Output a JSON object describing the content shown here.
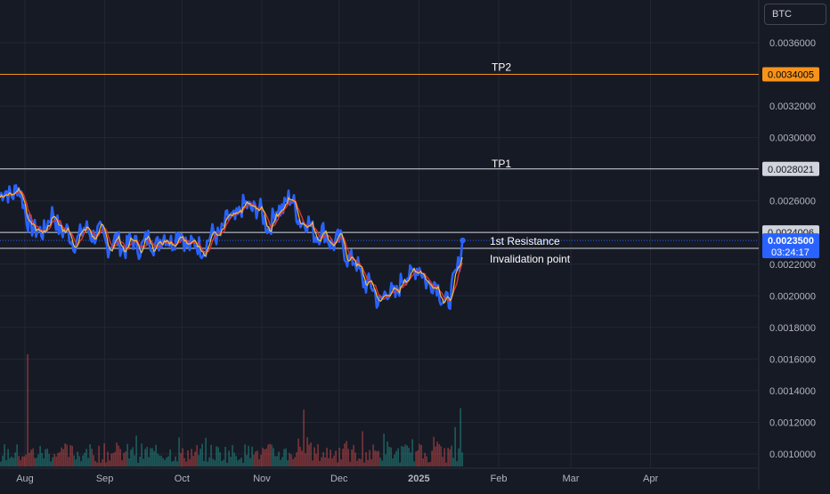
{
  "currency_button": "BTC",
  "chart_data": {
    "type": "line",
    "title": "",
    "xlabel": "",
    "ylabel": "",
    "ylim": [
      0.00094,
      0.00375
    ],
    "x_tick_labels": [
      "Aug",
      "Sep",
      "Oct",
      "Nov",
      "Dec",
      "2025",
      "Feb",
      "Mar",
      "Apr"
    ],
    "y_tick_labels": [
      "0.0036000",
      "0.0034000",
      "0.0032000",
      "0.0030000",
      "0.0028000",
      "0.0026000",
      "0.0024000",
      "0.0022000",
      "0.0020000",
      "0.0018000",
      "0.0016000",
      "0.0014000",
      "0.0012000",
      "0.0010000"
    ],
    "y_ticks": [
      0.0036,
      0.0034,
      0.0032,
      0.003,
      0.0028,
      0.0026,
      0.0024,
      0.0022,
      0.002,
      0.0018,
      0.0016,
      0.0014,
      0.0012,
      0.001
    ],
    "series": [
      {
        "role": "price",
        "color": "#2962ff",
        "x": [
          "2024-07-22",
          "2024-07-29",
          "2024-08-05",
          "2024-08-12",
          "2024-08-19",
          "2024-08-26",
          "2024-09-02",
          "2024-09-09",
          "2024-09-16",
          "2024-09-23",
          "2024-09-30",
          "2024-10-07",
          "2024-10-14",
          "2024-10-21",
          "2024-10-28",
          "2024-11-04",
          "2024-11-11",
          "2024-11-18",
          "2024-11-25",
          "2024-12-02",
          "2024-12-09",
          "2024-12-16",
          "2024-12-23",
          "2024-12-30",
          "2025-01-06",
          "2025-01-13",
          "2025-01-18"
        ],
        "values": [
          0.00262,
          0.00268,
          0.00238,
          0.0025,
          0.00235,
          0.00242,
          0.00234,
          0.00232,
          0.00233,
          0.00235,
          0.00238,
          0.0023,
          0.00238,
          0.0025,
          0.00258,
          0.00245,
          0.00262,
          0.00245,
          0.00238,
          0.00232,
          0.00215,
          0.00198,
          0.00203,
          0.00218,
          0.00208,
          0.00195,
          0.00235
        ]
      },
      {
        "role": "moving-average-red",
        "color": "#e03232"
      },
      {
        "role": "moving-average-yellow",
        "color": "#f0c040"
      }
    ],
    "volume": {
      "color_up": "#26a69a",
      "color_down": "#ef5350",
      "spikes": [
        {
          "x": "2024-08-02",
          "value": 0.00163
        },
        {
          "x": "2024-11-17",
          "value": 0.00128
        },
        {
          "x": "2025-01-17",
          "value": 0.00129
        }
      ]
    },
    "horizontal_lines": [
      {
        "label": "TP2",
        "value": 0.0034005,
        "value_label": "0.0034005",
        "color": "#f7931a"
      },
      {
        "label": "TP1",
        "value": 0.0028021,
        "value_label": "0.0028021",
        "color": "#d1d4dc"
      },
      {
        "label": "1st Resistance",
        "value": 0.0024006,
        "value_label": "0.0024006",
        "color": "#d1d4dc"
      },
      {
        "label": "Invalidation point",
        "value": 0.0023,
        "value_label": "0.0023000",
        "color": "#d1d4dc"
      }
    ],
    "current_price": {
      "value": 0.00235,
      "value_label": "0.0023500",
      "countdown": "03:24:17",
      "color": "#2962ff"
    },
    "grid": true,
    "legend": "none"
  }
}
